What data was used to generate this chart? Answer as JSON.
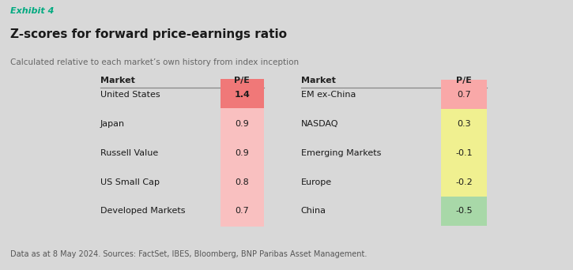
{
  "exhibit_label": "Exhibit 4",
  "title": "Z-scores for forward price-earnings ratio",
  "subtitle": "Calculated relative to each market’s own history from index inception",
  "footnote": "Data as at 8 May 2024. Sources: FactSet, IBES, Bloomberg, BNP Paribas Asset Management.",
  "bg_color": "#d8d8d8",
  "left_markets": [
    "United States",
    "Japan",
    "Russell Value",
    "US Small Cap",
    "Developed Markets"
  ],
  "left_values": [
    "1.4",
    "0.9",
    "0.9",
    "0.8",
    "0.7"
  ],
  "left_top_color": "#f07878",
  "left_bottom_color": "#f9c0c0",
  "right_markets": [
    "EM ex-China",
    "NASDAQ",
    "Emerging Markets",
    "Europe",
    "China"
  ],
  "right_values": [
    "0.7",
    "0.3",
    "-0.1",
    "-0.2",
    "-0.5"
  ],
  "right_cell_colors": [
    "#f9a8a8",
    "#f0f090",
    "#f0f090",
    "#f0f090",
    "#a8d8a8"
  ],
  "exhibit_color": "#00aa80",
  "title_color": "#1a1a1a",
  "subtitle_color": "#666666",
  "footnote_color": "#555555",
  "header_color": "#222222",
  "line_color": "#888888"
}
